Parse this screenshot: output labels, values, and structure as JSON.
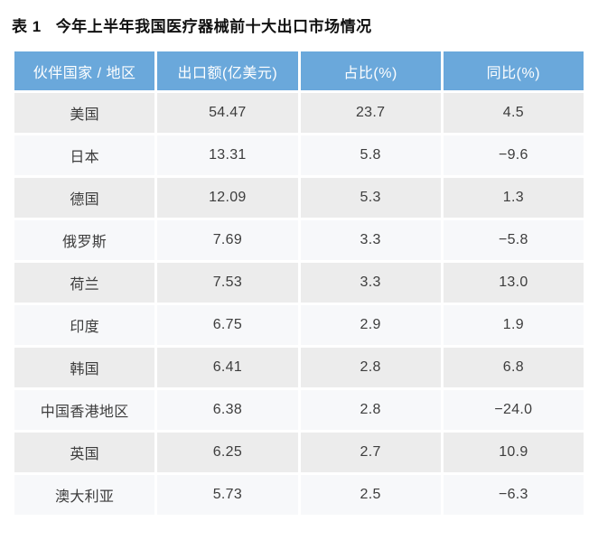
{
  "title": {
    "prefix": "表 1",
    "text": "今年上半年我国医疗器械前十大出口市场情况"
  },
  "colors": {
    "header_bg": "#6AA8DB",
    "header_text": "#FFFFFF",
    "row_odd_bg": "#ECECEC",
    "row_even_bg": "#F7F8FA",
    "body_text": "#3D3D3D",
    "title_text": "#111111"
  },
  "table": {
    "columns": [
      "伙伴国家 / 地区",
      "出口额(亿美元)",
      "占比(%)",
      "同比(%)"
    ],
    "rows": [
      {
        "market": "美国",
        "export_value": "54.47",
        "share": "23.7",
        "yoy": "4.5"
      },
      {
        "market": "日本",
        "export_value": "13.31",
        "share": "5.8",
        "yoy": "−9.6"
      },
      {
        "market": "德国",
        "export_value": "12.09",
        "share": "5.3",
        "yoy": "1.3"
      },
      {
        "market": "俄罗斯",
        "export_value": "7.69",
        "share": "3.3",
        "yoy": "−5.8"
      },
      {
        "market": "荷兰",
        "export_value": "7.53",
        "share": "3.3",
        "yoy": "13.0"
      },
      {
        "market": "印度",
        "export_value": "6.75",
        "share": "2.9",
        "yoy": "1.9"
      },
      {
        "market": "韩国",
        "export_value": "6.41",
        "share": "2.8",
        "yoy": "6.8"
      },
      {
        "market": "中国香港地区",
        "export_value": "6.38",
        "share": "2.8",
        "yoy": "−24.0"
      },
      {
        "market": "英国",
        "export_value": "6.25",
        "share": "2.7",
        "yoy": "10.9"
      },
      {
        "market": "澳大利亚",
        "export_value": "5.73",
        "share": "2.5",
        "yoy": "−6.3"
      }
    ]
  },
  "chart_data": {
    "type": "table",
    "title": "表 1 今年上半年我国医疗器械前十大出口市场情况",
    "columns": [
      "伙伴国家 / 地区",
      "出口额(亿美元)",
      "占比(%)",
      "同比(%)"
    ],
    "rows": [
      [
        "美国",
        54.47,
        23.7,
        4.5
      ],
      [
        "日本",
        13.31,
        5.8,
        -9.6
      ],
      [
        "德国",
        12.09,
        5.3,
        1.3
      ],
      [
        "俄罗斯",
        7.69,
        3.3,
        -5.8
      ],
      [
        "荷兰",
        7.53,
        3.3,
        13.0
      ],
      [
        "印度",
        6.75,
        2.9,
        1.9
      ],
      [
        "韩国",
        6.41,
        2.8,
        6.8
      ],
      [
        "中国香港地区",
        6.38,
        2.8,
        -24.0
      ],
      [
        "英国",
        6.25,
        2.7,
        10.9
      ],
      [
        "澳大利亚",
        5.73,
        2.5,
        -6.3
      ]
    ]
  }
}
